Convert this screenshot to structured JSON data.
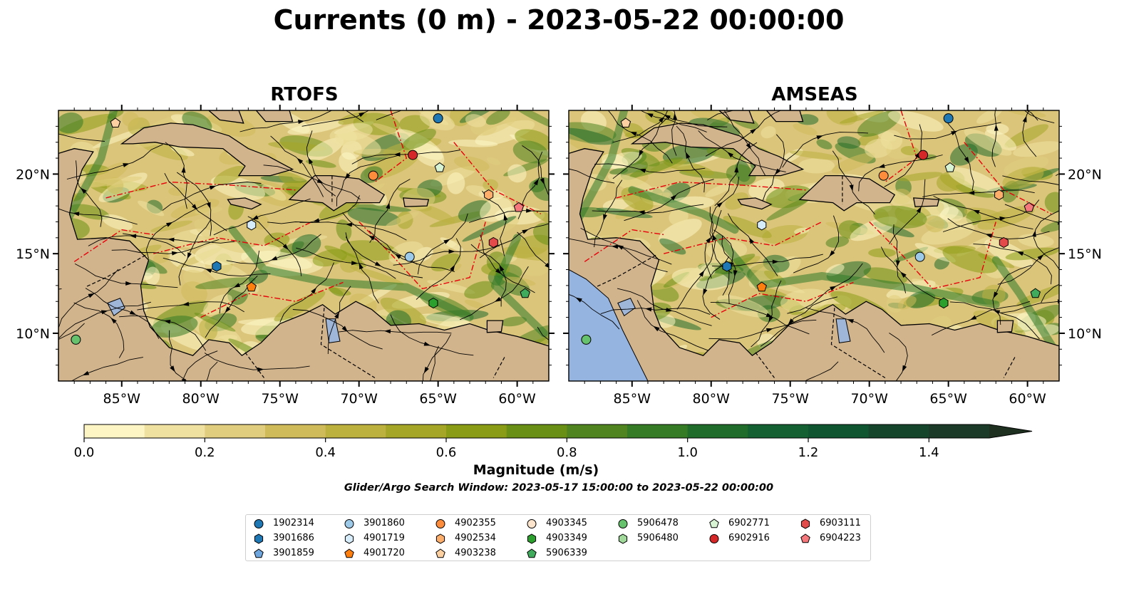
{
  "title": "Currents (0 m) - 2023-05-22 00:00:00",
  "panels": [
    {
      "title": "RTOFS"
    },
    {
      "title": "AMSEAS"
    }
  ],
  "x_ticks": [
    "85°W",
    "80°W",
    "75°W",
    "70°W",
    "65°W",
    "60°W"
  ],
  "y_ticks": [
    "10°N",
    "15°N",
    "20°N"
  ],
  "colorbar": {
    "label": "Magnitude (m/s)",
    "ticks": [
      "0.0",
      "0.2",
      "0.4",
      "0.6",
      "0.8",
      "1.0",
      "1.2",
      "1.4"
    ],
    "colors": [
      "#fdf6c4",
      "#efe1a0",
      "#e0cd7d",
      "#d0bb5b",
      "#bcb03f",
      "#a5a628",
      "#8a9c16",
      "#6a8f15",
      "#4f8420",
      "#357a25",
      "#1f6c2b",
      "#146032",
      "#0f5530",
      "#15462c",
      "#1b3a28",
      "#1e3020"
    ]
  },
  "search_window": "Glider/Argo Search Window: 2023-05-17 15:00:00 to 2023-05-22 00:00:00",
  "legend": [
    {
      "label": "1902314",
      "marker": "circle",
      "color": "#1f77b4"
    },
    {
      "label": "3901686",
      "marker": "hexagon",
      "color": "#1f77b4"
    },
    {
      "label": "3901859",
      "marker": "pentagon",
      "color": "#6fa6de"
    },
    {
      "label": "3901860",
      "marker": "circle",
      "color": "#9ecae9"
    },
    {
      "label": "4901719",
      "marker": "hexagon",
      "color": "#d6ecfa"
    },
    {
      "label": "4901720",
      "marker": "pentagon",
      "color": "#ff7f0e"
    },
    {
      "label": "4902355",
      "marker": "circle",
      "color": "#fd8d3c"
    },
    {
      "label": "4902534",
      "marker": "hexagon",
      "color": "#fdae6b"
    },
    {
      "label": "4903238",
      "marker": "pentagon",
      "color": "#fdd0a2"
    },
    {
      "label": "4903345",
      "marker": "circle",
      "color": "#fde4cc"
    },
    {
      "label": "4903349",
      "marker": "hexagon",
      "color": "#2ca02c"
    },
    {
      "label": "5906339",
      "marker": "pentagon",
      "color": "#41ab5d"
    },
    {
      "label": "5906478",
      "marker": "circle",
      "color": "#66c26c"
    },
    {
      "label": "5906480",
      "marker": "hexagon",
      "color": "#a1d99b"
    },
    {
      "label": "6902771",
      "marker": "pentagon",
      "color": "#d7f3d3"
    },
    {
      "label": "6902916",
      "marker": "circle",
      "color": "#d62728"
    },
    {
      "label": "6903111",
      "marker": "hexagon",
      "color": "#e34a4a"
    },
    {
      "label": "6904223",
      "marker": "pentagon",
      "color": "#f4787c"
    }
  ],
  "chart_data": {
    "type": "map",
    "extent": {
      "lon": [
        -89,
        -58
      ],
      "lat": [
        7,
        24
      ]
    },
    "markers": [
      {
        "id": "1902314",
        "lon": -65.0,
        "lat": 23.5
      },
      {
        "id": "4903238",
        "lon": -85.4,
        "lat": 23.2
      },
      {
        "id": "6902916",
        "lon": -66.6,
        "lat": 21.2
      },
      {
        "id": "6902771",
        "lon": -64.9,
        "lat": 20.4
      },
      {
        "id": "4902355",
        "lon": -69.1,
        "lat": 19.9
      },
      {
        "id": "4902534",
        "lon": -61.8,
        "lat": 18.7
      },
      {
        "id": "6904223",
        "lon": -59.9,
        "lat": 17.9
      },
      {
        "id": "4901719",
        "lon": -76.8,
        "lat": 16.8
      },
      {
        "id": "6903111",
        "lon": -61.5,
        "lat": 15.7
      },
      {
        "id": "3901860",
        "lon": -66.8,
        "lat": 14.8
      },
      {
        "id": "3901686",
        "lon": -79.0,
        "lat": 14.2
      },
      {
        "id": "4901720",
        "lon": -76.8,
        "lat": 12.9
      },
      {
        "id": "5906339",
        "lon": -59.5,
        "lat": 12.5
      },
      {
        "id": "4903349",
        "lon": -65.3,
        "lat": 11.9
      },
      {
        "id": "5906478",
        "lon": -87.9,
        "lat": 9.6
      }
    ]
  }
}
